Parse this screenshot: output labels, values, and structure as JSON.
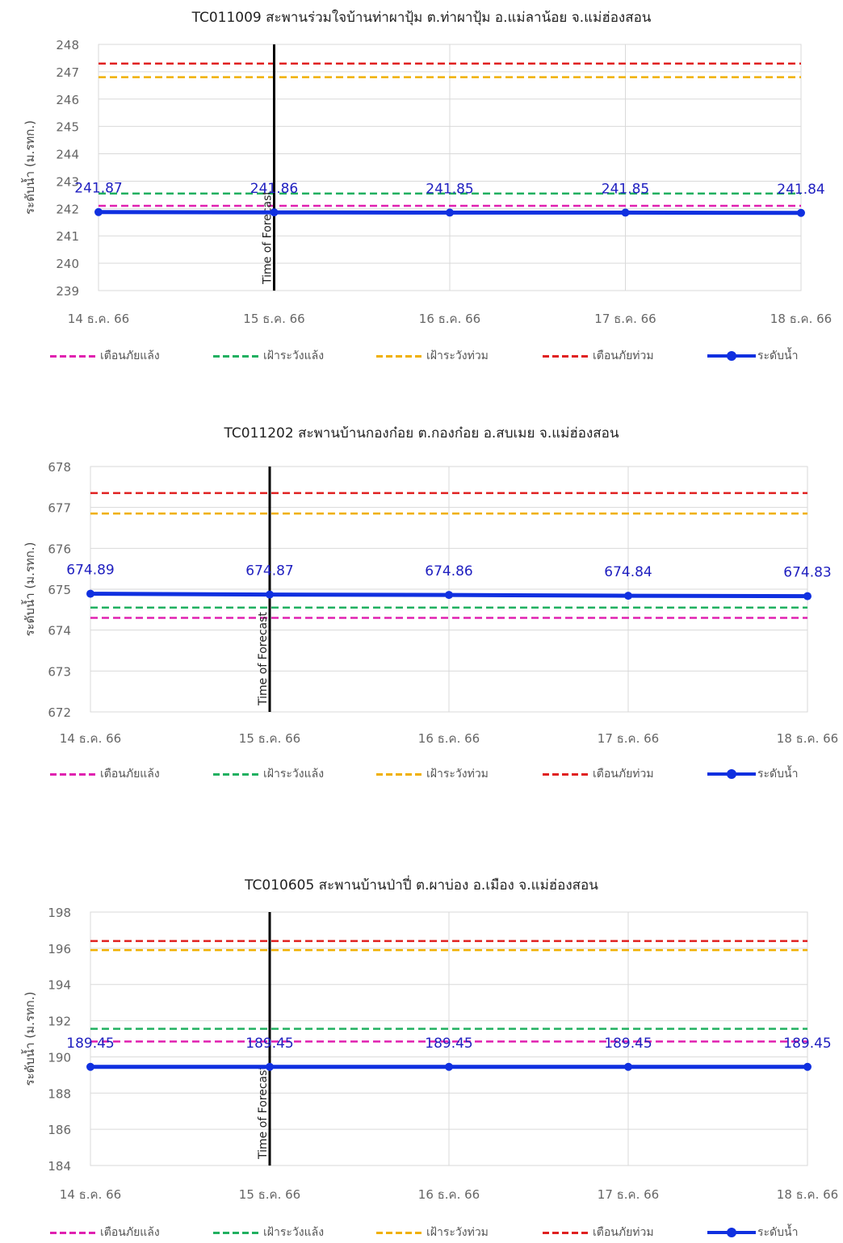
{
  "colors": {
    "drought_warning": "#e020b0",
    "drought_watch": "#20b060",
    "flood_watch": "#f0b000",
    "flood_warning": "#e02020",
    "water_level": "#1030e0",
    "forecast_line": "#000000",
    "grid": "#d9d9d9",
    "label_text": "#2020c0"
  },
  "legend_labels": [
    "เตือนภัยแล้ง",
    "เฝ้าระวังแล้ง",
    "เฝ้าระวังท่วม",
    "เตือนภัยท่วม",
    "ระดับน้ำ"
  ],
  "chart_data": [
    {
      "type": "line",
      "title": "TC011009 สะพานร่วมใจบ้านท่าผาปุ้ม ต.ท่าผาปุ้ม อ.แม่ลาน้อย จ.แม่ฮ่องสอน",
      "ylabel": "ระดับน้ำ (ม.รทก.)",
      "categories": [
        "14 ธ.ค. 66",
        "15 ธ.ค. 66",
        "16 ธ.ค. 66",
        "17 ธ.ค. 66",
        "18 ธ.ค. 66"
      ],
      "ylim": [
        239,
        248
      ],
      "yticks": [
        239,
        240,
        241,
        242,
        243,
        244,
        245,
        246,
        247,
        248
      ],
      "forecast_marker": "Time of Forecast",
      "forecast_index": 1,
      "thresholds": {
        "drought_warning": 242.1,
        "drought_watch": 242.55,
        "flood_watch": 246.8,
        "flood_warning": 247.3
      },
      "series": [
        {
          "name": "ระดับน้ำ",
          "values": [
            241.87,
            241.86,
            241.85,
            241.85,
            241.84
          ],
          "labels": [
            "241.87",
            "241.86",
            "241.85",
            "241.85",
            "241.84"
          ]
        }
      ]
    },
    {
      "type": "line",
      "title": "TC011202 สะพานบ้านกองก๋อย ต.กองก๋อย อ.สบเมย จ.แม่ฮ่องสอน",
      "ylabel": "ระดับน้ำ (ม.รทก.)",
      "categories": [
        "14 ธ.ค. 66",
        "15 ธ.ค. 66",
        "16 ธ.ค. 66",
        "17 ธ.ค. 66",
        "18 ธ.ค. 66"
      ],
      "ylim": [
        672,
        678
      ],
      "yticks": [
        672,
        673,
        674,
        675,
        676,
        677,
        678
      ],
      "forecast_marker": "Time of Forecast",
      "forecast_index": 1,
      "thresholds": {
        "drought_warning": 674.3,
        "drought_watch": 674.55,
        "flood_watch": 676.85,
        "flood_warning": 677.35
      },
      "series": [
        {
          "name": "ระดับน้ำ",
          "values": [
            674.89,
            674.87,
            674.86,
            674.84,
            674.83
          ],
          "labels": [
            "674.89",
            "674.87",
            "674.86",
            "674.84",
            "674.83"
          ]
        }
      ]
    },
    {
      "type": "line",
      "title": "TC010605 สะพานบ้านป่าปี่ ต.ผาบ่อง อ.เมือง จ.แม่ฮ่องสอน",
      "ylabel": "ระดับน้ำ (ม.รทก.)",
      "categories": [
        "14 ธ.ค. 66",
        "15 ธ.ค. 66",
        "16 ธ.ค. 66",
        "17 ธ.ค. 66",
        "18 ธ.ค. 66"
      ],
      "ylim": [
        184,
        198
      ],
      "yticks": [
        184,
        186,
        188,
        190,
        192,
        194,
        196,
        198
      ],
      "forecast_marker": "Time of Forecast",
      "forecast_index": 1,
      "thresholds": {
        "drought_warning": 190.85,
        "drought_watch": 191.55,
        "flood_watch": 195.9,
        "flood_warning": 196.4
      },
      "series": [
        {
          "name": "ระดับน้ำ",
          "values": [
            189.45,
            189.45,
            189.45,
            189.45,
            189.45
          ],
          "labels": [
            "189.45",
            "189.45",
            "189.45",
            "189.45",
            "189.45"
          ]
        }
      ]
    }
  ]
}
